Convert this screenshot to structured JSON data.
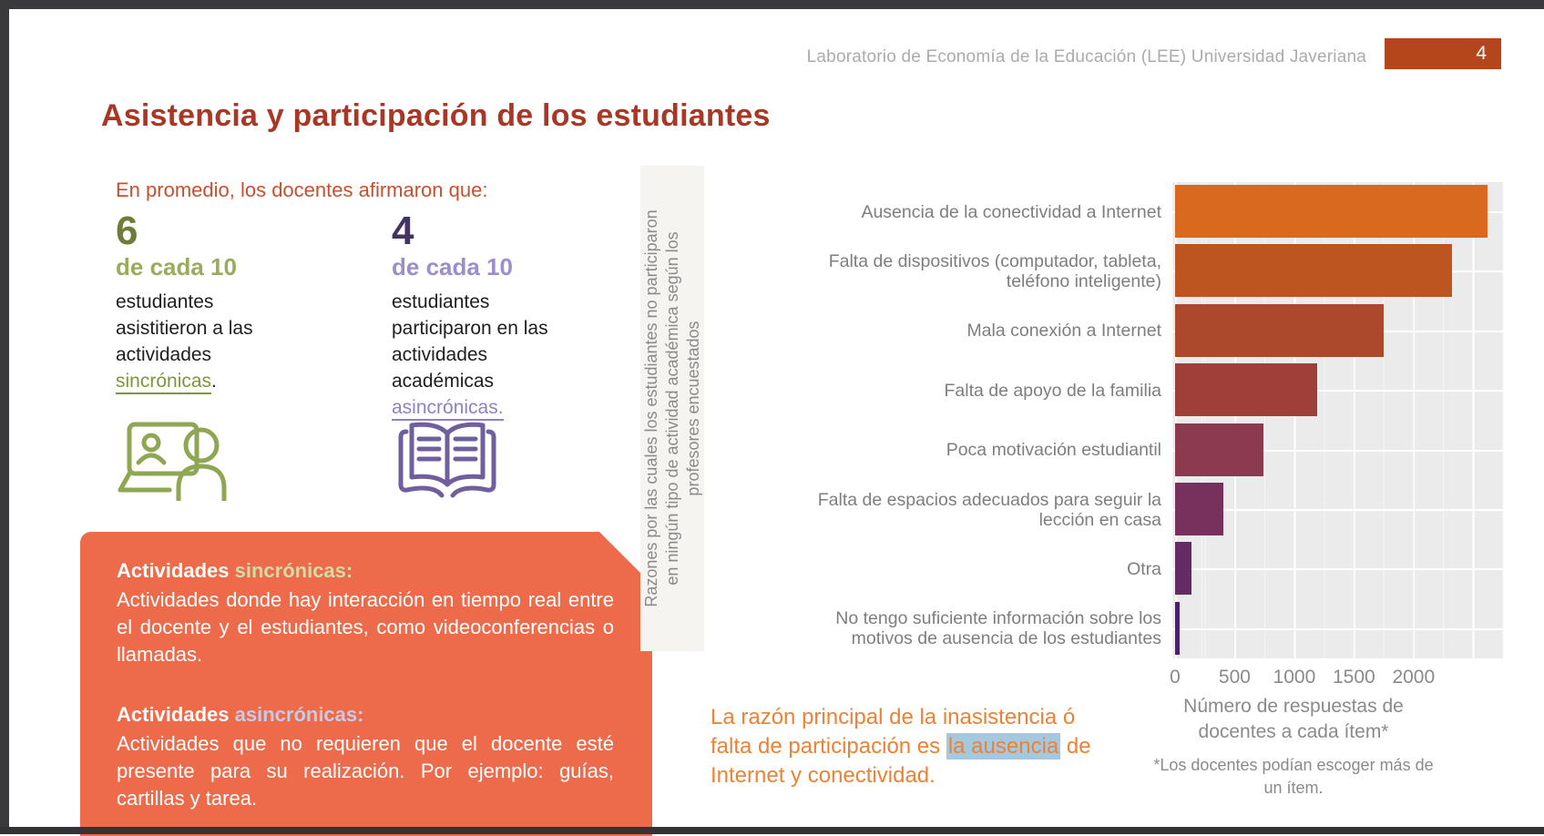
{
  "frame": {
    "header": "Laboratorio de Economía de la Educación (LEE) Universidad Javeriana",
    "page_number": "4"
  },
  "title": "Asistencia y participación de los estudiantes",
  "intro": "En promedio, los docentes afirmaron que:",
  "stats": [
    {
      "number": "6",
      "of": "de cada 10",
      "lines": [
        "estudiantes",
        "asistitieron a las",
        "actividades"
      ],
      "word": "sincrónicas",
      "after": ".",
      "icon": "video-call-icon"
    },
    {
      "number": "4",
      "of": "de cada 10",
      "lines": [
        "estudiantes",
        "participaron en las",
        "actividades",
        "académicas"
      ],
      "word": "asincrónicas.",
      "after": "",
      "icon": "open-book-icon"
    }
  ],
  "definitions_box": {
    "bg_color": "#ed6b4b",
    "items": [
      {
        "title_plain": "Actividades",
        "title_word": "sincrónicas:",
        "title_word_color": "#cedfa6",
        "body": "Actividades donde hay interacción en tiempo real entre el docente y el estudiantes, como videoconferencias o llamadas."
      },
      {
        "title_plain": "Actividades",
        "title_word": "asincrónicas:",
        "title_word_color": "#c8cbe6",
        "body": "Actividades que no requieren que el docente esté presente para su realización. Por ejemplo: guías, cartillas y tarea."
      }
    ]
  },
  "chart_data": {
    "type": "bar",
    "orientation": "horizontal",
    "ylabel": "Razones por las cuales los estudiantes no participaron en ningún tipo de actividad académica según los profesores encuestados",
    "ylabel_lines": [
      "Razones por las cuales los estudiantes no participaron",
      "en ningún tipo de actividad académica según los",
      "profesores encuestados"
    ],
    "categories": [
      "Ausencia de la conectividad a Internet",
      "Falta de dispositivos (computador, tableta, teléfono inteligente)",
      "Mala conexión a Internet",
      "Falta de apoyo de la familia",
      "Poca motivación estudiantil",
      "Falta de espacios adecuados para seguir la lección en casa",
      "Otra",
      "No tengo suficiente información sobre los motivos de ausencia de los estudiantes"
    ],
    "categories_wrapped": [
      [
        "Ausencia de la conectividad a Internet"
      ],
      [
        "Falta de dispositivos (computador, tableta,",
        "teléfono inteligente)"
      ],
      [
        "Mala conexión a Internet"
      ],
      [
        "Falta de apoyo de la familia"
      ],
      [
        "Poca motivación estudiantil"
      ],
      [
        "Falta de espacios adecuados para seguir la",
        "lección en casa"
      ],
      [
        "Otra"
      ],
      [
        "No tengo suficiente información sobre los",
        "motivos de ausencia de los estudiantes"
      ]
    ],
    "values": [
      2620,
      2320,
      1750,
      1190,
      740,
      405,
      135,
      35
    ],
    "bar_colors": [
      "#d8691f",
      "#bd5521",
      "#ac492c",
      "#a03e3a",
      "#8c3a4f",
      "#78305c",
      "#652b65",
      "#4b2268"
    ],
    "xticks": [
      0,
      500,
      1000,
      1500,
      2000
    ],
    "xlim": [
      0,
      2750
    ],
    "grid": "white-on-gray",
    "panel_bg": "#ebebeb",
    "xlabel": "Número de respuestas de docentes a cada ítem*",
    "xlabel_lines": [
      "Número de respuestas de",
      "docentes a cada ítem*"
    ],
    "footnote": "*Los docentes podían escoger más de un ítem.",
    "footnote_lines": [
      "*Los docentes podían escoger más de",
      "un ítem."
    ]
  },
  "statement": {
    "line1": "La razón principal de la inasistencia ó",
    "line2_pre": "falta de participación es ",
    "highlight": "la ausencia",
    "line2_post": " de",
    "line3": "Internet y conectividad.",
    "text_color": "#ee8133",
    "highlight_bg": "#a6c8de"
  }
}
